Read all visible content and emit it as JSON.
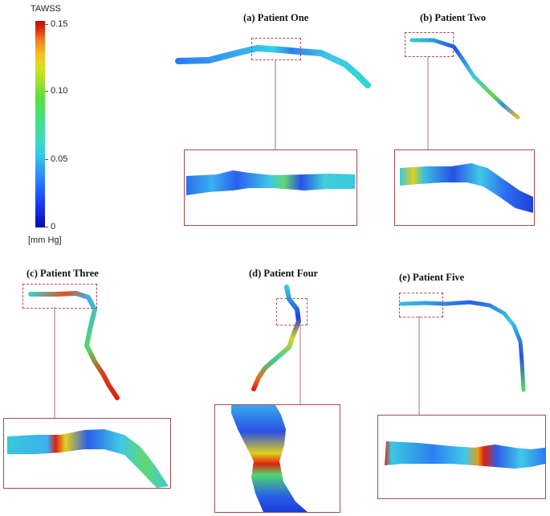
{
  "legend": {
    "title": "TAWSS",
    "ticks": [
      "0.15",
      "0.10",
      "0.05",
      "0"
    ],
    "unit": "[mm Hg]"
  },
  "panels": [
    {
      "label": "(a) Patient One"
    },
    {
      "label": "(b) Patient Two"
    },
    {
      "label": "(c) Patient Three"
    },
    {
      "label": "(d) Patient Four"
    },
    {
      "label": "(e) Patient Five"
    }
  ],
  "colors": {
    "low": "#0a0aa8",
    "mid": "#3fd8c0",
    "high": "#c01008",
    "inset_border": "#a84a4a"
  }
}
